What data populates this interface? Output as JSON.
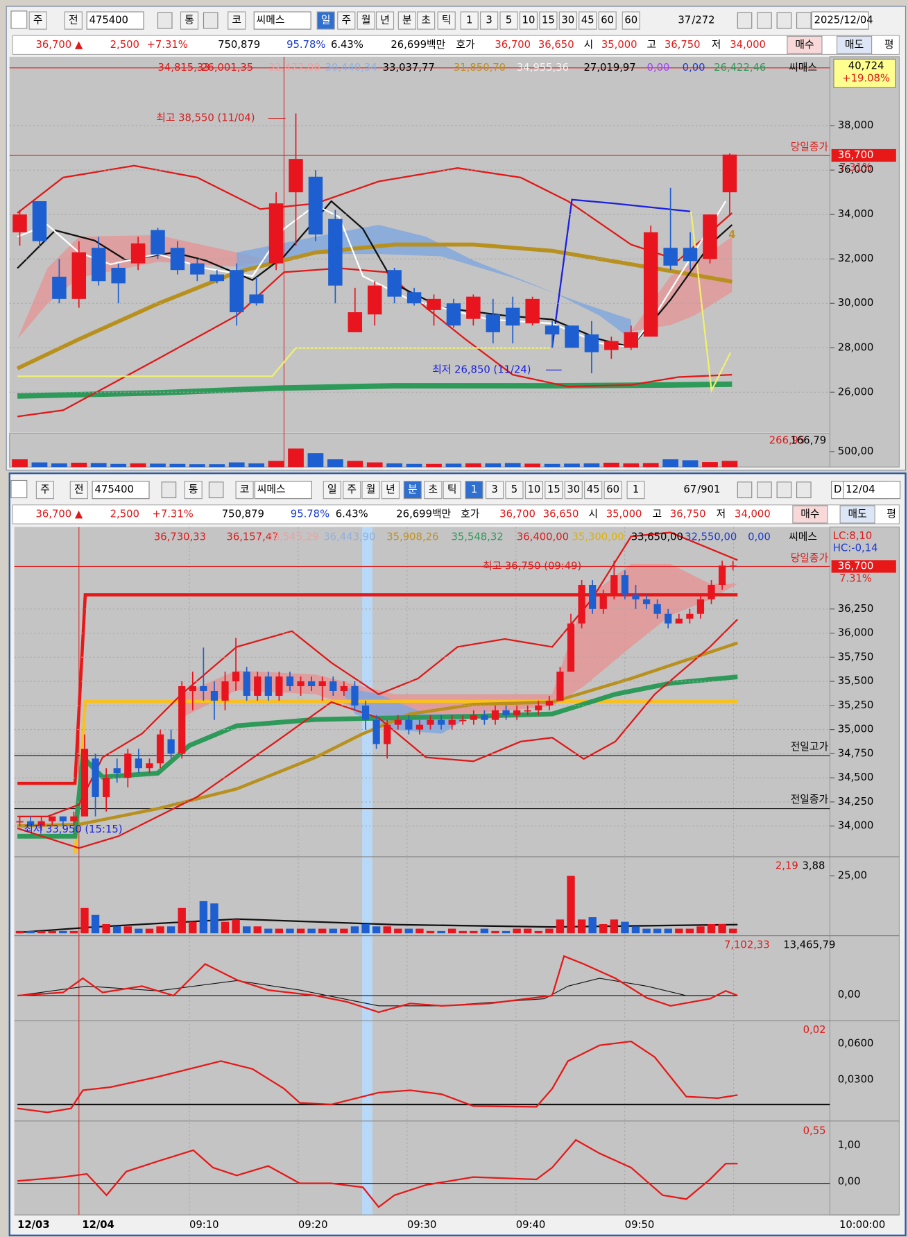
{
  "colors": {
    "up": "#e8141e",
    "down": "#1d5fd0"
  },
  "top": {
    "toolbar": [
      "주",
      "전",
      "475400",
      "통",
      "코",
      "씨메스",
      "일",
      "주",
      "월",
      "년",
      "분",
      "초",
      "틱",
      "1",
      "3",
      "5",
      "10",
      "15",
      "30",
      "45",
      "60",
      "60",
      "37",
      "/272",
      "2025/12/04"
    ],
    "info": [
      "36,700 ▲",
      "2,500",
      "+7.31%",
      "750,879",
      "95.78%",
      "6.43%",
      "26,699백만",
      "호가",
      "36,700",
      "36,650",
      "시",
      "35,000",
      "고",
      "36,750",
      "저",
      "34,000",
      "매수",
      "매도",
      "평"
    ],
    "legend": [
      "34,815,33",
      "26,001,35",
      "32,477,08",
      "30,440,34",
      "33,037,77",
      "31,850,70",
      "34,955,36",
      "27,019,97",
      "0,00",
      "0,00",
      "26,422,46",
      "씨매스"
    ],
    "ylim": [
      24300,
      41100
    ],
    "yticks": [
      {
        "value": 38000,
        "label": "38,000"
      },
      {
        "value": 36000,
        "label": "36,000"
      },
      {
        "value": 34000,
        "label": "34,000"
      },
      {
        "value": 32000,
        "label": "32,000"
      },
      {
        "value": 30000,
        "label": "30,000"
      },
      {
        "value": 28000,
        "label": "28,000"
      },
      {
        "value": 26000,
        "label": "26,000"
      }
    ],
    "annotations": {
      "high": "최고 38,550 (11/04)",
      "low": "최저 26,850 (11/24)",
      "close_tag": "당일종가",
      "close_price": "36,700",
      "close_pct": "7.31%",
      "box_price": "40,724",
      "box_pct": "+19.08%",
      "marker": "4"
    },
    "candles": [
      [
        33200,
        34200,
        32600,
        34000
      ],
      [
        34600,
        34600,
        32500,
        32800
      ],
      [
        31200,
        32000,
        30000,
        30200
      ],
      [
        30200,
        32800,
        29800,
        32300
      ],
      [
        32500,
        33000,
        30800,
        31000
      ],
      [
        31600,
        31800,
        30000,
        30900
      ],
      [
        31800,
        33000,
        31500,
        32700
      ],
      [
        33300,
        33400,
        32000,
        32200
      ],
      [
        32500,
        32800,
        31300,
        31500
      ],
      [
        31800,
        32000,
        31000,
        31300
      ],
      [
        31300,
        31500,
        30900,
        31000
      ],
      [
        31500,
        31800,
        29000,
        29600
      ],
      [
        30400,
        31200,
        29900,
        30000
      ],
      [
        31800,
        35000,
        31500,
        34500
      ],
      [
        35000,
        38550,
        32600,
        36500
      ],
      [
        35700,
        36000,
        32800,
        33100
      ],
      [
        33800,
        34200,
        30000,
        30800
      ],
      [
        28700,
        30700,
        28700,
        29600
      ],
      [
        29500,
        31000,
        29000,
        30800
      ],
      [
        31500,
        31600,
        30000,
        30300
      ],
      [
        30500,
        30700,
        29900,
        30000
      ],
      [
        29700,
        30400,
        29000,
        30200
      ],
      [
        30000,
        30200,
        28900,
        29000
      ],
      [
        29300,
        30400,
        29000,
        30300
      ],
      [
        29500,
        30200,
        28200,
        28700
      ],
      [
        29800,
        30300,
        28200,
        29000
      ],
      [
        29100,
        30300,
        29000,
        30200
      ],
      [
        29000,
        29200,
        28000,
        28600
      ],
      [
        29000,
        29000,
        28000,
        28000
      ],
      [
        28600,
        29200,
        26850,
        27800
      ],
      [
        27900,
        28500,
        27500,
        28300
      ],
      [
        28000,
        29000,
        27900,
        28700
      ],
      [
        28500,
        33500,
        28500,
        33200
      ],
      [
        32500,
        35200,
        31500,
        31700
      ],
      [
        32500,
        33200,
        31500,
        31900
      ],
      [
        32000,
        34000,
        31800,
        34000
      ],
      [
        35000,
        36750,
        34000,
        36700
      ]
    ],
    "volume": [
      250,
      150,
      120,
      140,
      130,
      100,
      120,
      110,
      100,
      90,
      90,
      150,
      120,
      200,
      600,
      450,
      250,
      200,
      150,
      120,
      100,
      100,
      110,
      120,
      120,
      130,
      110,
      100,
      110,
      120,
      140,
      120,
      130,
      250,
      220,
      160,
      200
    ],
    "volume_ylim": [
      0,
      1100
    ],
    "volume_legend": [
      "266,95",
      "166,79"
    ],
    "volume_tick": {
      "value": 500,
      "label": "500,00"
    }
  },
  "bottom": {
    "toolbar": [
      "주",
      "전",
      "475400",
      "통",
      "코",
      "씨메스",
      "일",
      "주",
      "월",
      "년",
      "분",
      "초",
      "틱",
      "1",
      "3",
      "5",
      "10",
      "15",
      "30",
      "45",
      "60",
      "1",
      "67",
      "/901",
      "D",
      "12/04"
    ],
    "info": [
      "36,700 ▲",
      "2,500",
      "+7.31%",
      "750,879",
      "95.78%",
      "6.43%",
      "26,699백만",
      "호가",
      "36,700",
      "36,650",
      "시",
      "35,000",
      "고",
      "36,750",
      "저",
      "34,000",
      "매수",
      "매도",
      "평"
    ],
    "legend": [
      "36,730,33",
      "36,157,47",
      "36,545,29",
      "36,443,90",
      "35,908,26",
      "35,548,32",
      "36,400,00",
      "35,300,00",
      "33,650,00",
      "32,550,00",
      "0,00",
      "씨메스"
    ],
    "lc": "LC:8,10",
    "hc": "HC:-0,14",
    "ylim": [
      33690,
      37100
    ],
    "yticks": [
      {
        "value": 36250,
        "label": "36,250"
      },
      {
        "value": 36000,
        "label": "36,000"
      },
      {
        "value": 35750,
        "label": "35,750"
      },
      {
        "value": 35500,
        "label": "35,500"
      },
      {
        "value": 35250,
        "label": "35,250"
      },
      {
        "value": 35000,
        "label": "35,000"
      },
      {
        "value": 34750,
        "label": "34,750"
      },
      {
        "value": 34500,
        "label": "34,500"
      },
      {
        "value": 34250,
        "label": "34,250"
      },
      {
        "value": 34000,
        "label": "34,000"
      }
    ],
    "annotations": {
      "high": "최고 36,750 (09:49)",
      "low": "최저 33,950 (15:15)",
      "close_tag": "당일종가",
      "close_price": "36,700",
      "close_pct": "7.31%",
      "prev_high": "전일고가",
      "prev_close": "전일종가"
    },
    "candles": [
      [
        34050,
        34100,
        34000,
        34050
      ],
      [
        34050,
        34100,
        34000,
        34000
      ],
      [
        34000,
        34100,
        33950,
        34050
      ],
      [
        34050,
        34100,
        34000,
        34100
      ],
      [
        34100,
        34100,
        34000,
        34050
      ],
      [
        34050,
        34150,
        34000,
        34100
      ],
      [
        34100,
        34950,
        34100,
        34800
      ],
      [
        34700,
        34750,
        34100,
        34300
      ],
      [
        34300,
        34600,
        34150,
        34500
      ],
      [
        34600,
        34700,
        34450,
        34550
      ],
      [
        34500,
        34800,
        34400,
        34750
      ],
      [
        34700,
        34800,
        34550,
        34600
      ],
      [
        34600,
        34700,
        34550,
        34650
      ],
      [
        34650,
        35000,
        34600,
        34950
      ],
      [
        34900,
        35000,
        34700,
        34750
      ],
      [
        34750,
        35500,
        34700,
        35450
      ],
      [
        35400,
        35600,
        35200,
        35450
      ],
      [
        35450,
        35850,
        35300,
        35400
      ],
      [
        35400,
        35500,
        35100,
        35300
      ],
      [
        35300,
        35600,
        35200,
        35500
      ],
      [
        35500,
        35950,
        35400,
        35600
      ],
      [
        35600,
        35650,
        35300,
        35350
      ],
      [
        35350,
        35600,
        35300,
        35550
      ],
      [
        35550,
        35600,
        35300,
        35350
      ],
      [
        35350,
        35600,
        35300,
        35550
      ],
      [
        35550,
        35600,
        35400,
        35450
      ],
      [
        35450,
        35550,
        35350,
        35500
      ],
      [
        35500,
        35550,
        35400,
        35450
      ],
      [
        35450,
        35550,
        35300,
        35500
      ],
      [
        35500,
        35550,
        35350,
        35400
      ],
      [
        35400,
        35500,
        35350,
        35450
      ],
      [
        35450,
        35500,
        35200,
        35250
      ],
      [
        35250,
        35300,
        35000,
        35100
      ],
      [
        35100,
        35150,
        34800,
        34850
      ],
      [
        34850,
        35100,
        34700,
        35050
      ],
      [
        35050,
        35150,
        35000,
        35100
      ],
      [
        35100,
        35150,
        34950,
        35000
      ],
      [
        35000,
        35100,
        34950,
        35050
      ],
      [
        35050,
        35150,
        35000,
        35100
      ],
      [
        35100,
        35150,
        35000,
        35050
      ],
      [
        35050,
        35150,
        35000,
        35100
      ],
      [
        35100,
        35150,
        35050,
        35100
      ],
      [
        35100,
        35200,
        35050,
        35150
      ],
      [
        35150,
        35200,
        35050,
        35100
      ],
      [
        35100,
        35250,
        35050,
        35200
      ],
      [
        35200,
        35250,
        35100,
        35150
      ],
      [
        35150,
        35250,
        35100,
        35200
      ],
      [
        35200,
        35250,
        35150,
        35200
      ],
      [
        35200,
        35300,
        35150,
        35250
      ],
      [
        35250,
        35350,
        35200,
        35300
      ],
      [
        35300,
        35650,
        35300,
        35600
      ],
      [
        35600,
        36200,
        35600,
        36100
      ],
      [
        36100,
        36550,
        36050,
        36500
      ],
      [
        36500,
        36550,
        36200,
        36250
      ],
      [
        36250,
        36450,
        36200,
        36400
      ],
      [
        36400,
        36750,
        36350,
        36600
      ],
      [
        36600,
        36650,
        36350,
        36400
      ],
      [
        36400,
        36500,
        36250,
        36350
      ],
      [
        36350,
        36400,
        36250,
        36300
      ],
      [
        36300,
        36350,
        36150,
        36200
      ],
      [
        36200,
        36250,
        36050,
        36100
      ],
      [
        36100,
        36200,
        36100,
        36150
      ],
      [
        36150,
        36250,
        36100,
        36200
      ],
      [
        36200,
        36400,
        36150,
        36350
      ],
      [
        36350,
        36550,
        36300,
        36500
      ],
      [
        36500,
        36750,
        36450,
        36700
      ],
      [
        36700,
        36750,
        36650,
        36700
      ]
    ],
    "volume": [
      1,
      1,
      1,
      1,
      1,
      1,
      11,
      8,
      4,
      3,
      3,
      2,
      2,
      3,
      3,
      11,
      5,
      14,
      13,
      5,
      6,
      3,
      3,
      2,
      2,
      2,
      2,
      2,
      2,
      2,
      2,
      3,
      4,
      3,
      3,
      2,
      2,
      2,
      1,
      1,
      2,
      1,
      1,
      2,
      1,
      1,
      2,
      2,
      1,
      2,
      6,
      25,
      6,
      7,
      4,
      6,
      5,
      3,
      2,
      2,
      2,
      2,
      2,
      3,
      4,
      4,
      2
    ],
    "volume_ylim": [
      0,
      33
    ],
    "volume_legend": [
      "2,19",
      "3,88"
    ],
    "volume_tick": {
      "value": 25,
      "label": "25,00"
    },
    "panel2": {
      "legend": [
        "7,102,33",
        "13,465,79"
      ],
      "tick": "0,00"
    },
    "panel3": {
      "legend": "0,02",
      "ticks": [
        "0,0600",
        "0,0300"
      ]
    },
    "panel4": {
      "legend": "0,55",
      "ticks": [
        "1,00",
        "0,00"
      ]
    },
    "time_labels": [
      "12/03",
      "12/04",
      "09:10",
      "09:20",
      "09:30",
      "09:40",
      "09:50",
      "10:00:00"
    ]
  }
}
